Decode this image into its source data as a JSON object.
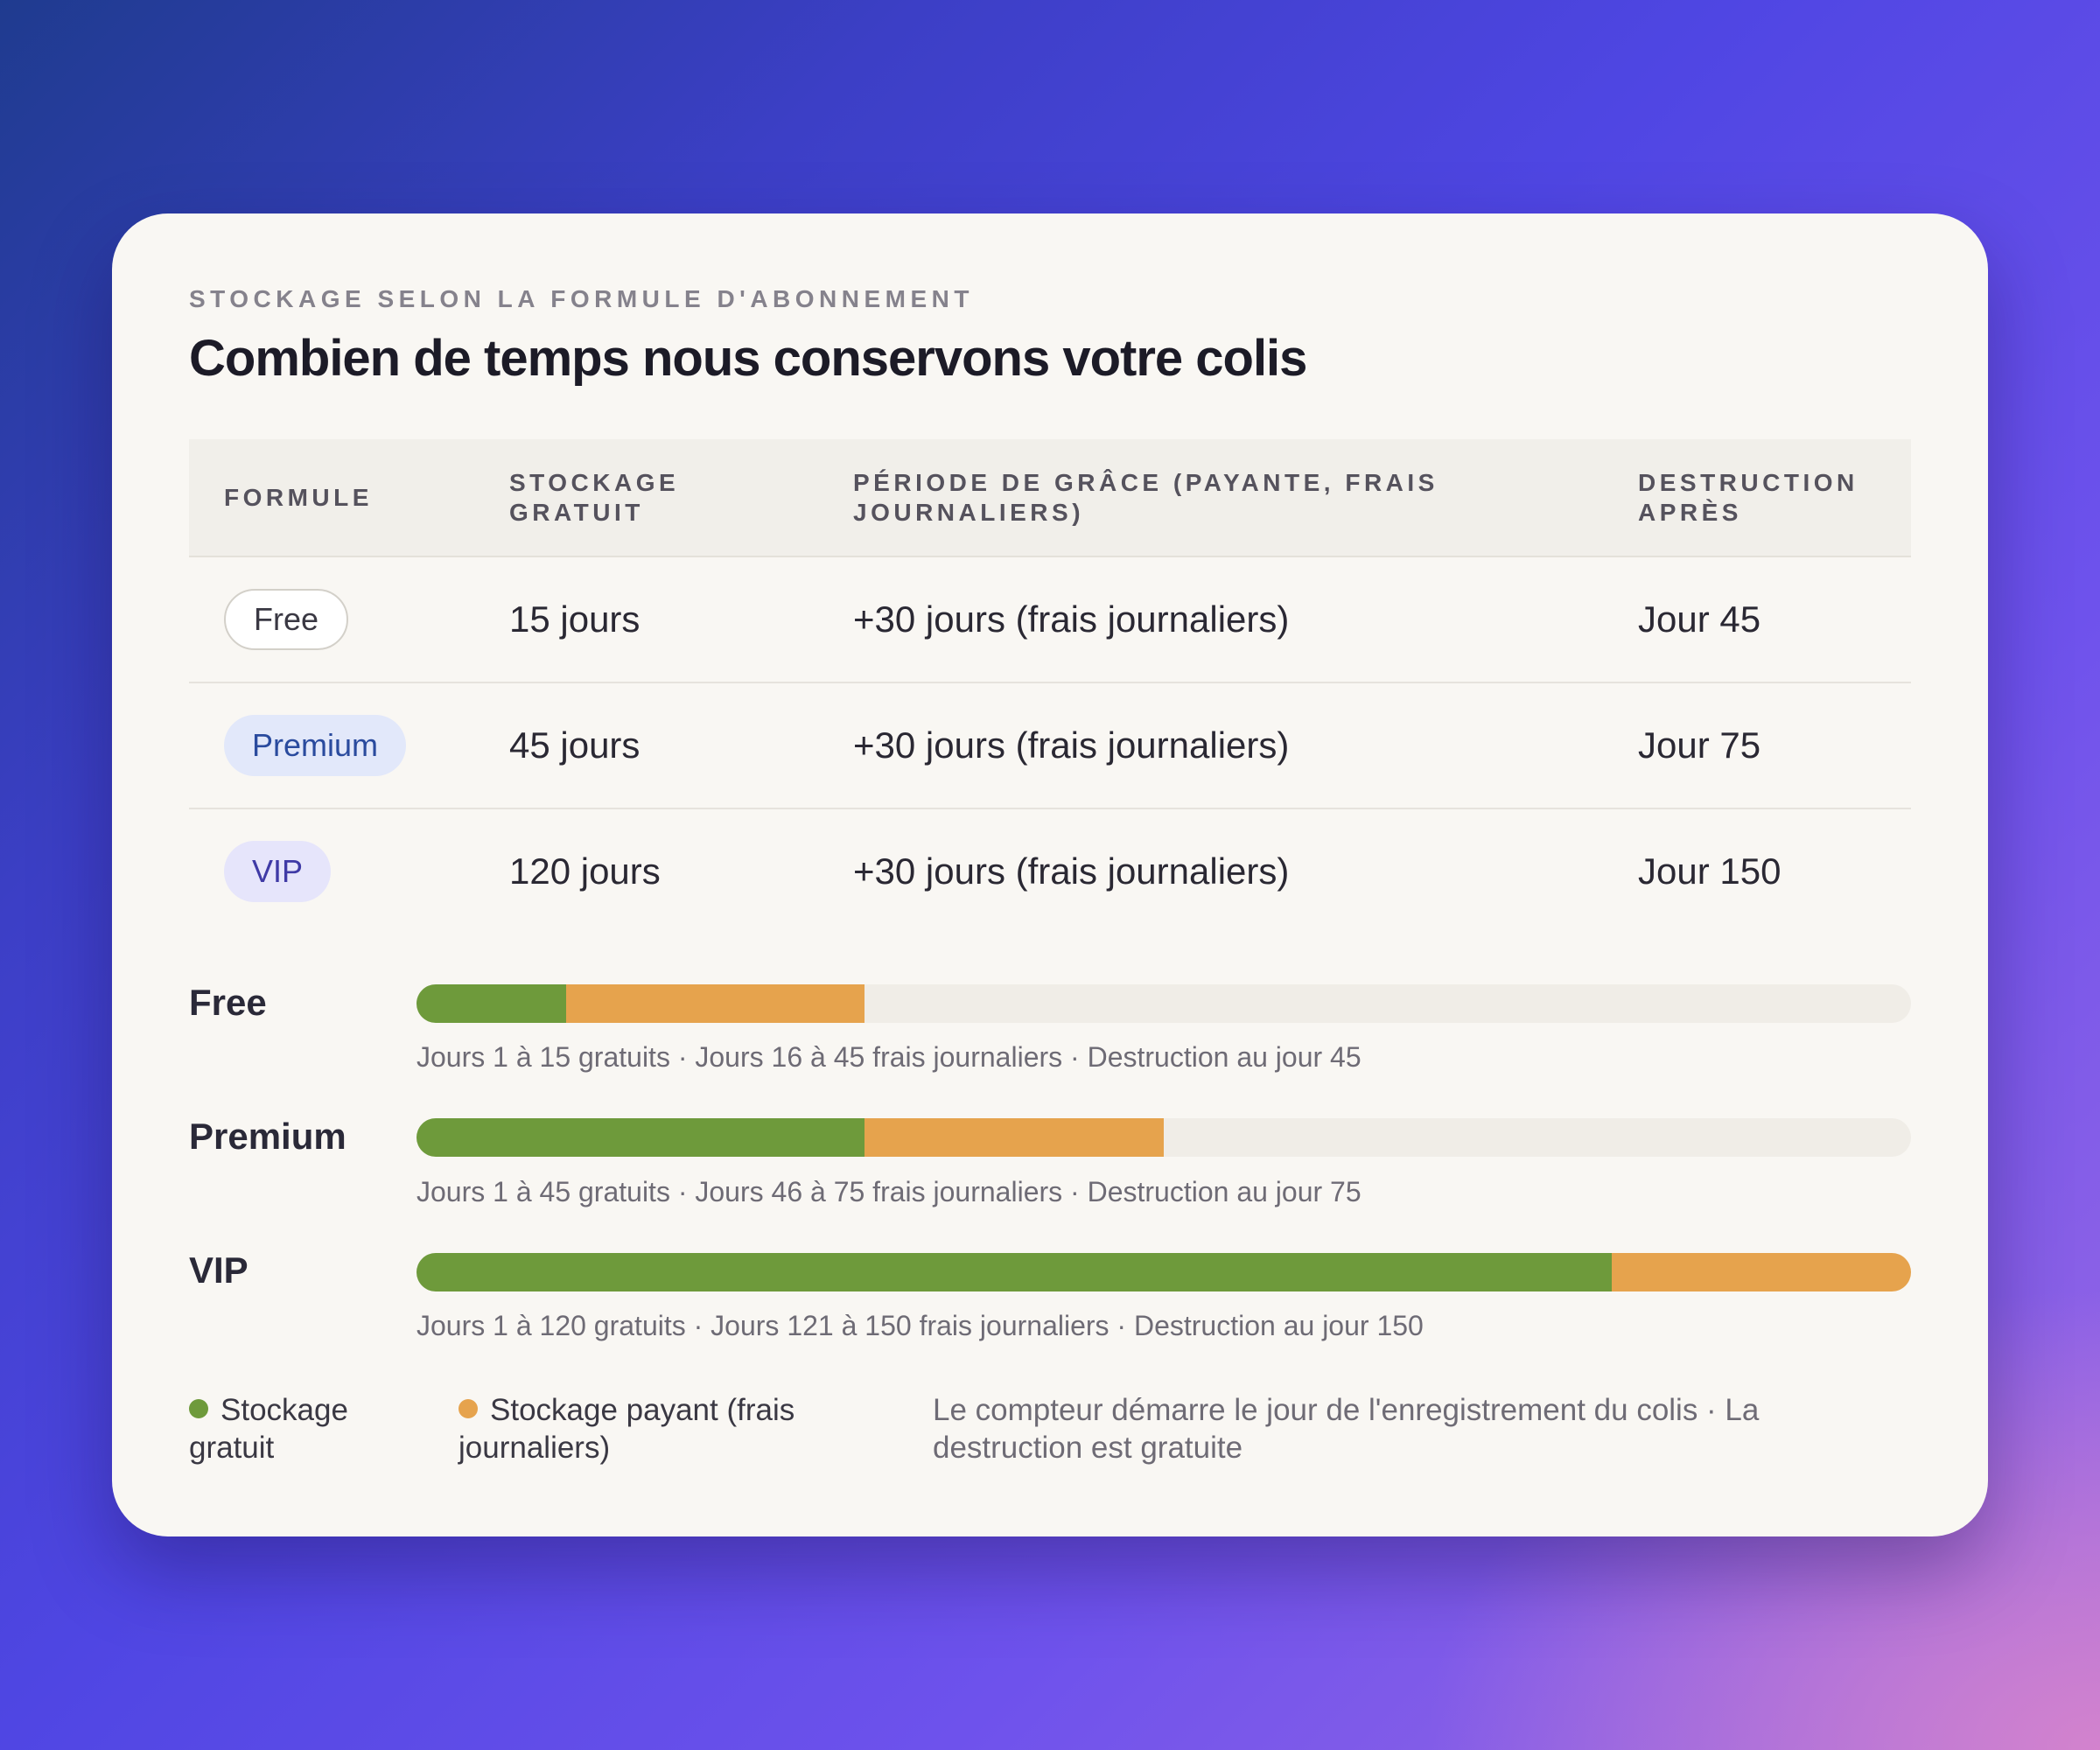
{
  "eyebrow": "STOCKAGE SELON LA FORMULE D'ABONNEMENT",
  "title": "Combien de temps nous conservons votre colis",
  "table": {
    "headers": [
      "FORMULE",
      "STOCKAGE\nGRATUIT",
      "PÉRIODE DE GRÂCE (PAYANTE, FRAIS\nJOURNALIERS)",
      "DESTRUCTION\nAPRÈS"
    ],
    "rows": [
      {
        "plan": "Free",
        "free_storage": "15 jours",
        "grace": "+30 jours (frais journaliers)",
        "destruction": "Jour 45"
      },
      {
        "plan": "Premium",
        "free_storage": "45 jours",
        "grace": "+30 jours (frais journaliers)",
        "destruction": "Jour 75"
      },
      {
        "plan": "VIP",
        "free_storage": "120 jours",
        "grace": "+30 jours (frais journaliers)",
        "destruction": "Jour 150"
      }
    ]
  },
  "timeline": {
    "scale_days": 150,
    "bars": [
      {
        "label": "Free",
        "free_days": 15,
        "paid_days": 30,
        "caption": "Jours 1 à 15 gratuits · Jours 16 à 45 frais journaliers · Destruction au jour 45"
      },
      {
        "label": "Premium",
        "free_days": 45,
        "paid_days": 30,
        "caption": "Jours 1 à 45 gratuits · Jours 46 à 75 frais journaliers · Destruction au jour 75"
      },
      {
        "label": "VIP",
        "free_days": 120,
        "paid_days": 30,
        "caption": "Jours 1 à 120 gratuits · Jours 121 à 150 frais journaliers · Destruction au jour 150"
      }
    ]
  },
  "legend": {
    "free_label": "Stockage gratuit",
    "paid_label": "Stockage payant (frais journaliers)",
    "note": "Le compteur démarre le jour de l'enregistrement du colis · La destruction est gratuite"
  },
  "colors": {
    "free": "#6e9a3b",
    "paid": "#e6a34d",
    "track": "#f0ede7",
    "card": "#f9f7f3"
  }
}
